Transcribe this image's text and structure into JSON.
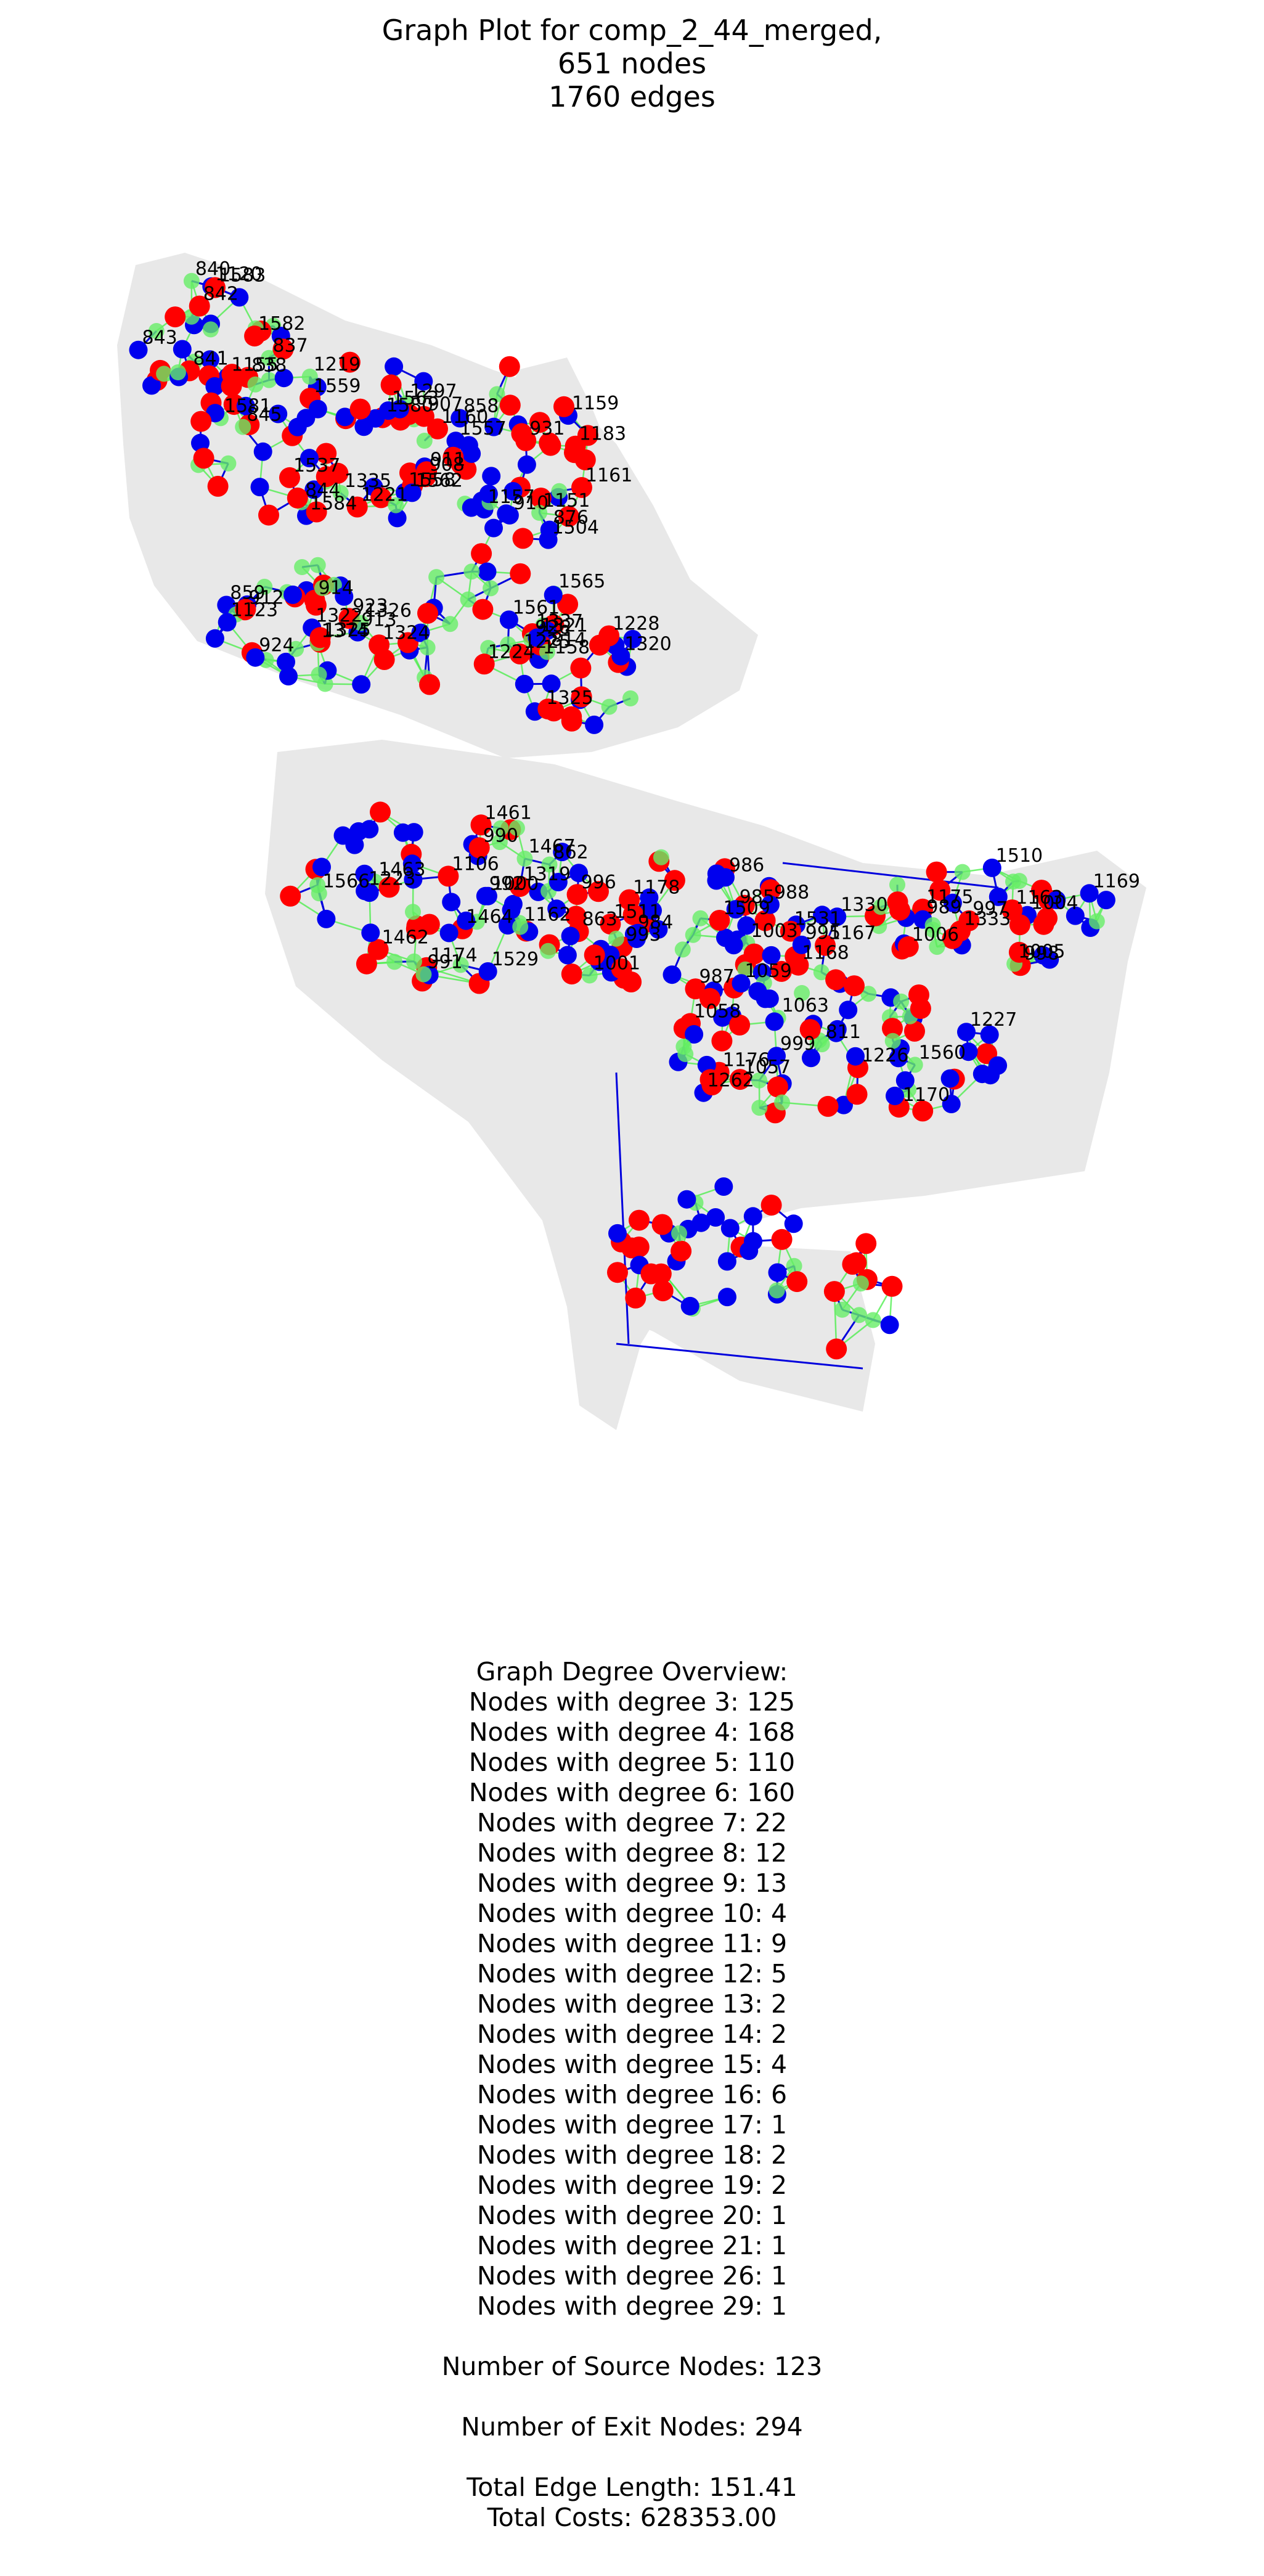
{
  "title": {
    "line1": "Graph Plot for comp_2_44_merged,",
    "line2": "651 nodes",
    "line3": "1760 edges"
  },
  "colors": {
    "background": "#ffffff",
    "region": "#e8e8e8",
    "blue_edge": "#0000dd",
    "green_edge": "#44ee44",
    "source_node": "#ff0000",
    "exit_node": "#0000ee",
    "junction_node": "#66ee66"
  },
  "graph": {
    "node_labels": [
      "837",
      "838",
      "1155",
      "1120",
      "840",
      "841",
      "842",
      "843",
      "1582",
      "1583",
      "1584",
      "1581",
      "1557",
      "844",
      "845",
      "1580",
      "1558",
      "1221",
      "1219",
      "1537",
      "1559",
      "1297",
      "1563",
      "1160",
      "1335",
      "907",
      "908",
      "1562",
      "1504",
      "1183",
      "876",
      "1157",
      "910",
      "911",
      "1161",
      "1159",
      "858",
      "931",
      "1151",
      "1561",
      "912",
      "913",
      "1565",
      "1337",
      "1325",
      "859",
      "914",
      "1158",
      "923",
      "924",
      "1324",
      "926",
      "1123",
      "1322",
      "1224",
      "1374",
      "1326",
      "1321",
      "1325",
      "1225",
      "814",
      "1320",
      "1228",
      "1467",
      "1464",
      "1463",
      "1462",
      "1461",
      "862",
      "1223",
      "1319",
      "1000",
      "1174",
      "1106",
      "863",
      "1566",
      "1529",
      "992",
      "990",
      "991",
      "984",
      "1162",
      "993",
      "1178",
      "1168",
      "1511",
      "1001",
      "1003",
      "986",
      "985",
      "1531",
      "1330",
      "987",
      "995",
      "988",
      "996",
      "1167",
      "1509",
      "1004",
      "1510",
      "1175",
      "989",
      "1163",
      "997",
      "998",
      "1333",
      "1169",
      "1005",
      "1006",
      "1176",
      "999",
      "1170",
      "1227",
      "811",
      "1226",
      "1262",
      "1057",
      "1059",
      "1058",
      "1063",
      "1560"
    ]
  },
  "stats": {
    "heading": "Graph Degree Overview:",
    "degree_lines": [
      "Nodes with degree 3: 125",
      "Nodes with degree 4: 168",
      "Nodes with degree 5: 110",
      "Nodes with degree 6: 160",
      "Nodes with degree 7: 22",
      "Nodes with degree 8: 12",
      "Nodes with degree 9: 13",
      "Nodes with degree 10: 4",
      "Nodes with degree 11: 9",
      "Nodes with degree 12: 5",
      "Nodes with degree 13: 2",
      "Nodes with degree 14: 2",
      "Nodes with degree 15: 4",
      "Nodes with degree 16: 6",
      "Nodes with degree 17: 1",
      "Nodes with degree 18: 2",
      "Nodes with degree 19: 2",
      "Nodes with degree 20: 1",
      "Nodes with degree 21: 1",
      "Nodes with degree 26: 1",
      "Nodes with degree 29: 1"
    ],
    "source_nodes": "Number of Source Nodes: 123",
    "exit_nodes": "Number of Exit Nodes: 294",
    "edge_length": "Total Edge Length: 151.41",
    "costs": "Total Costs: 628353.00"
  }
}
